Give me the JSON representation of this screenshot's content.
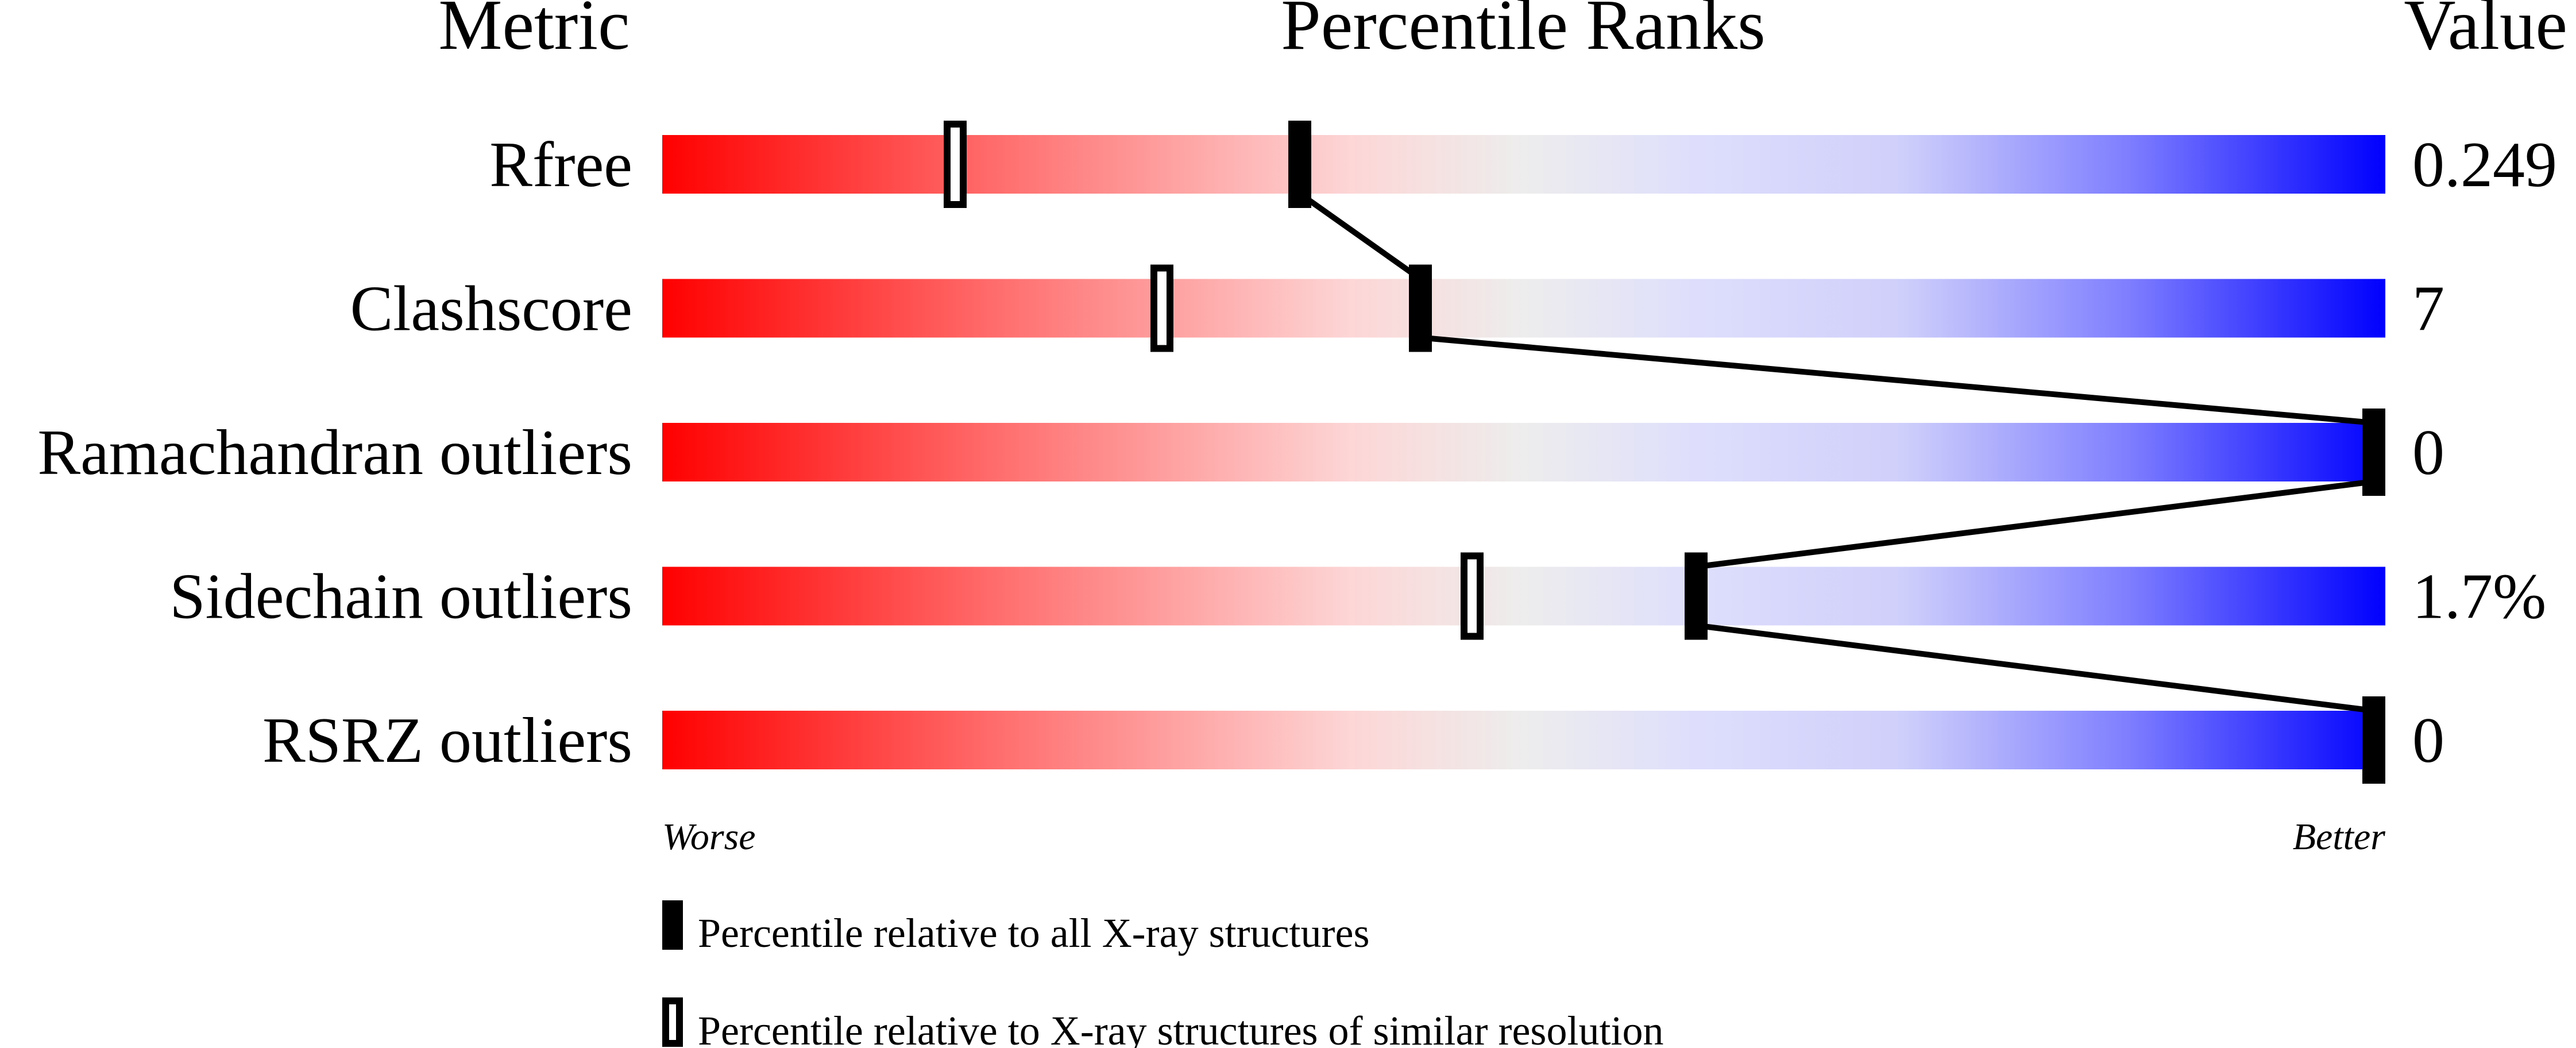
{
  "chart_data": {
    "type": "slider",
    "headers": {
      "metric": "Metric",
      "ranks": "Percentile Ranks",
      "value": "Value"
    },
    "xlim": [
      0,
      100
    ],
    "scale_labels": {
      "left": "Worse",
      "right": "Better"
    },
    "colors": {
      "worse": "#ff0000",
      "middle": "#eeeeee",
      "better": "#0000ff"
    },
    "metrics": [
      {
        "name": "Rfree",
        "value": "0.249",
        "percentile_all": 37,
        "percentile_similar": 17
      },
      {
        "name": "Clashscore",
        "value": "7",
        "percentile_all": 44,
        "percentile_similar": 29
      },
      {
        "name": "Ramachandran outliers",
        "value": "0",
        "percentile_all": 100,
        "percentile_similar": null
      },
      {
        "name": "Sidechain outliers",
        "value": "1.7%",
        "percentile_all": 60,
        "percentile_similar": 47
      },
      {
        "name": "RSRZ outliers",
        "value": "0",
        "percentile_all": 100,
        "percentile_similar": null
      }
    ],
    "legend": [
      {
        "marker": "filled",
        "label": "Percentile relative to all X-ray structures"
      },
      {
        "marker": "hollow",
        "label": "Percentile relative to X-ray structures of similar resolution"
      }
    ]
  }
}
